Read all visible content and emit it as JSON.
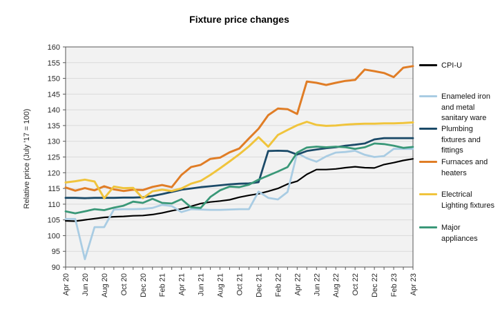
{
  "title": "Fixture price changes",
  "y_axis": {
    "label": "Relative price (July '17 = 100)",
    "min": 90,
    "max": 160,
    "step": 5,
    "tick_labels": [
      "90",
      "95",
      "100",
      "105",
      "110",
      "115",
      "120",
      "125",
      "130",
      "135",
      "140",
      "145",
      "150",
      "155",
      "160"
    ]
  },
  "x_axis": {
    "tick_labels_shown": [
      "Apr 20",
      "Jun 20",
      "Aug 20",
      "Oct 20",
      "Dec 20",
      "Feb 21",
      "Apr 21",
      "Jun 21",
      "Aug 21",
      "Oct 21",
      "Dec 21",
      "Feb 22",
      "Apr 22",
      "Jun 22",
      "Aug 22",
      "Oct 22",
      "Dec 22",
      "Feb 23",
      "Apr 23"
    ]
  },
  "chart_data": {
    "type": "line",
    "title": "Fixture price changes",
    "xlabel": "",
    "ylabel": "Relative price (July '17 = 100)",
    "ylim": [
      90,
      160
    ],
    "grid": true,
    "legend_position": "right",
    "plot_bg": "#f2f2f2",
    "grid_color": "#dadada",
    "frame_color": "#555555",
    "x": [
      "Apr 20",
      "May 20",
      "Jun 20",
      "Jul 20",
      "Aug 20",
      "Sep 20",
      "Oct 20",
      "Nov 20",
      "Dec 20",
      "Jan 21",
      "Feb 21",
      "Mar 21",
      "Apr 21",
      "May 21",
      "Jun 21",
      "Jul 21",
      "Aug 21",
      "Sep 21",
      "Oct 21",
      "Nov 21",
      "Dec 21",
      "Jan 22",
      "Feb 22",
      "Mar 22",
      "Apr 22",
      "May 22",
      "Jun 22",
      "Jul 22",
      "Aug 22",
      "Sep 22",
      "Oct 22",
      "Nov 22",
      "Dec 22",
      "Jan 23",
      "Feb 23",
      "Mar 23",
      "Apr 23"
    ],
    "series": [
      {
        "name": "CPI-U",
        "label": "CPI-U",
        "color": "#000000",
        "values": [
          104.7,
          104.6,
          105.0,
          105.4,
          105.8,
          106.0,
          106.1,
          106.3,
          106.4,
          106.7,
          107.2,
          107.9,
          108.5,
          109.3,
          110.2,
          110.7,
          111.0,
          111.4,
          112.2,
          112.8,
          113.3,
          114.1,
          115.0,
          116.4,
          117.3,
          119.5,
          121.0,
          121.0,
          121.2,
          121.6,
          121.9,
          121.6,
          121.5,
          122.6,
          123.2,
          123.9,
          124.4
        ]
      },
      {
        "name": "Enameled iron and metal sanitary ware",
        "label": "Enameled iron\nand metal\nsanitary ware",
        "color": "#a9cce3",
        "values": [
          105.3,
          105.3,
          92.5,
          102.7,
          102.7,
          108.3,
          108.4,
          108.4,
          108.5,
          108.8,
          109.8,
          109.4,
          107.5,
          108.4,
          108.3,
          108.2,
          108.2,
          108.3,
          108.4,
          108.4,
          114.0,
          112.0,
          111.5,
          113.9,
          126.3,
          124.6,
          123.5,
          125.2,
          126.4,
          126.6,
          127.0,
          125.7,
          125.0,
          125.3,
          127.6,
          127.6,
          127.6
        ]
      },
      {
        "name": "Plumbing fixtures and fittings",
        "label": "Plumbing\nfixtures and\nfittings",
        "color": "#1b4a68",
        "values": [
          112.0,
          112.0,
          111.9,
          112.0,
          112.0,
          112.0,
          112.1,
          112.1,
          112.2,
          112.6,
          113.2,
          113.9,
          114.6,
          115.0,
          115.4,
          115.7,
          116.0,
          116.3,
          116.5,
          116.6,
          117.0,
          126.9,
          127.0,
          126.9,
          125.8,
          126.9,
          127.4,
          127.8,
          128.1,
          128.6,
          128.9,
          129.3,
          130.6,
          131.0,
          131.0,
          131.0,
          131.0
        ]
      },
      {
        "name": "Furnaces and heaters",
        "label": "Furnaces and\nheaters",
        "color": "#e07d26",
        "values": [
          115.3,
          114.3,
          115.1,
          114.4,
          115.7,
          114.7,
          114.2,
          114.6,
          114.5,
          115.5,
          116.1,
          115.4,
          119.3,
          121.8,
          122.5,
          124.4,
          124.8,
          126.5,
          127.7,
          130.9,
          134.0,
          138.3,
          140.4,
          140.2,
          138.7,
          149.0,
          148.6,
          147.9,
          148.6,
          149.2,
          149.5,
          152.8,
          152.3,
          151.7,
          150.4,
          153.4,
          153.9
        ]
      },
      {
        "name": "Electrical Lighting fixtures",
        "label": "Electrical\nLighting fixtures",
        "color": "#f0c43c",
        "values": [
          116.9,
          117.3,
          117.8,
          117.2,
          111.9,
          115.6,
          115.1,
          115.2,
          111.9,
          114.1,
          114.6,
          114.2,
          115.0,
          116.5,
          117.4,
          119.3,
          121.4,
          123.6,
          125.9,
          128.4,
          131.3,
          128.3,
          132.0,
          133.6,
          135.1,
          136.2,
          135.2,
          134.9,
          135.0,
          135.3,
          135.5,
          135.6,
          135.6,
          135.7,
          135.7,
          135.8,
          136.0
        ]
      },
      {
        "name": "Major appliances",
        "label": "Major\nappliances",
        "color": "#3a9878",
        "values": [
          107.7,
          107.1,
          107.7,
          108.4,
          108.1,
          108.9,
          109.5,
          110.8,
          110.4,
          111.7,
          110.4,
          110.2,
          111.6,
          109.0,
          108.8,
          112.3,
          114.4,
          115.6,
          115.4,
          116.2,
          117.8,
          119.1,
          120.4,
          121.8,
          126.4,
          128.0,
          128.3,
          128.1,
          128.3,
          128.1,
          127.6,
          128.1,
          129.3,
          129.1,
          128.6,
          127.9,
          128.2
        ]
      }
    ]
  }
}
